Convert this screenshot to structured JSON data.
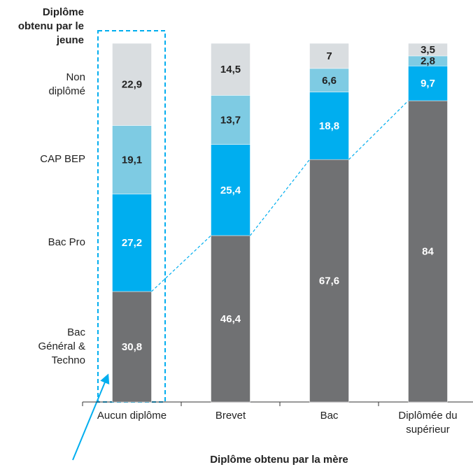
{
  "chart_data": {
    "type": "stacked_bar",
    "legend_title": "Diplôme obtenu par le jeune",
    "x_label": "Diplôme obtenu par la mère",
    "categories": [
      "Aucun diplôme",
      "Brevet",
      "Bac",
      "Diplômée du supérieur"
    ],
    "ylim": [
      0,
      100
    ],
    "series": [
      {
        "name": "Bac Général & Techno",
        "color": "#707173",
        "label_color": "#ffffff",
        "values": [
          30.8,
          46.4,
          67.6,
          84
        ],
        "value_labels": [
          "30,8",
          "46,4",
          "67,6",
          "84"
        ]
      },
      {
        "name": "Bac Pro",
        "color": "#00aeef",
        "label_color": "#ffffff",
        "values": [
          27.2,
          25.4,
          18.8,
          9.7
        ],
        "value_labels": [
          "27,2",
          "25,4",
          "18,8",
          "9,7"
        ]
      },
      {
        "name": "CAP BEP",
        "color": "#7ecbe3",
        "label_color": "#222222",
        "values": [
          19.1,
          13.7,
          6.6,
          2.8
        ],
        "value_labels": [
          "19,1",
          "13,7",
          "6,6",
          "2,8"
        ]
      },
      {
        "name": "Non diplômé",
        "color": "#d9dde0",
        "label_color": "#222222",
        "values": [
          22.9,
          14.5,
          7,
          3.5
        ],
        "value_labels": [
          "22,9",
          "14,5",
          "7",
          "3,5"
        ]
      }
    ]
  }
}
